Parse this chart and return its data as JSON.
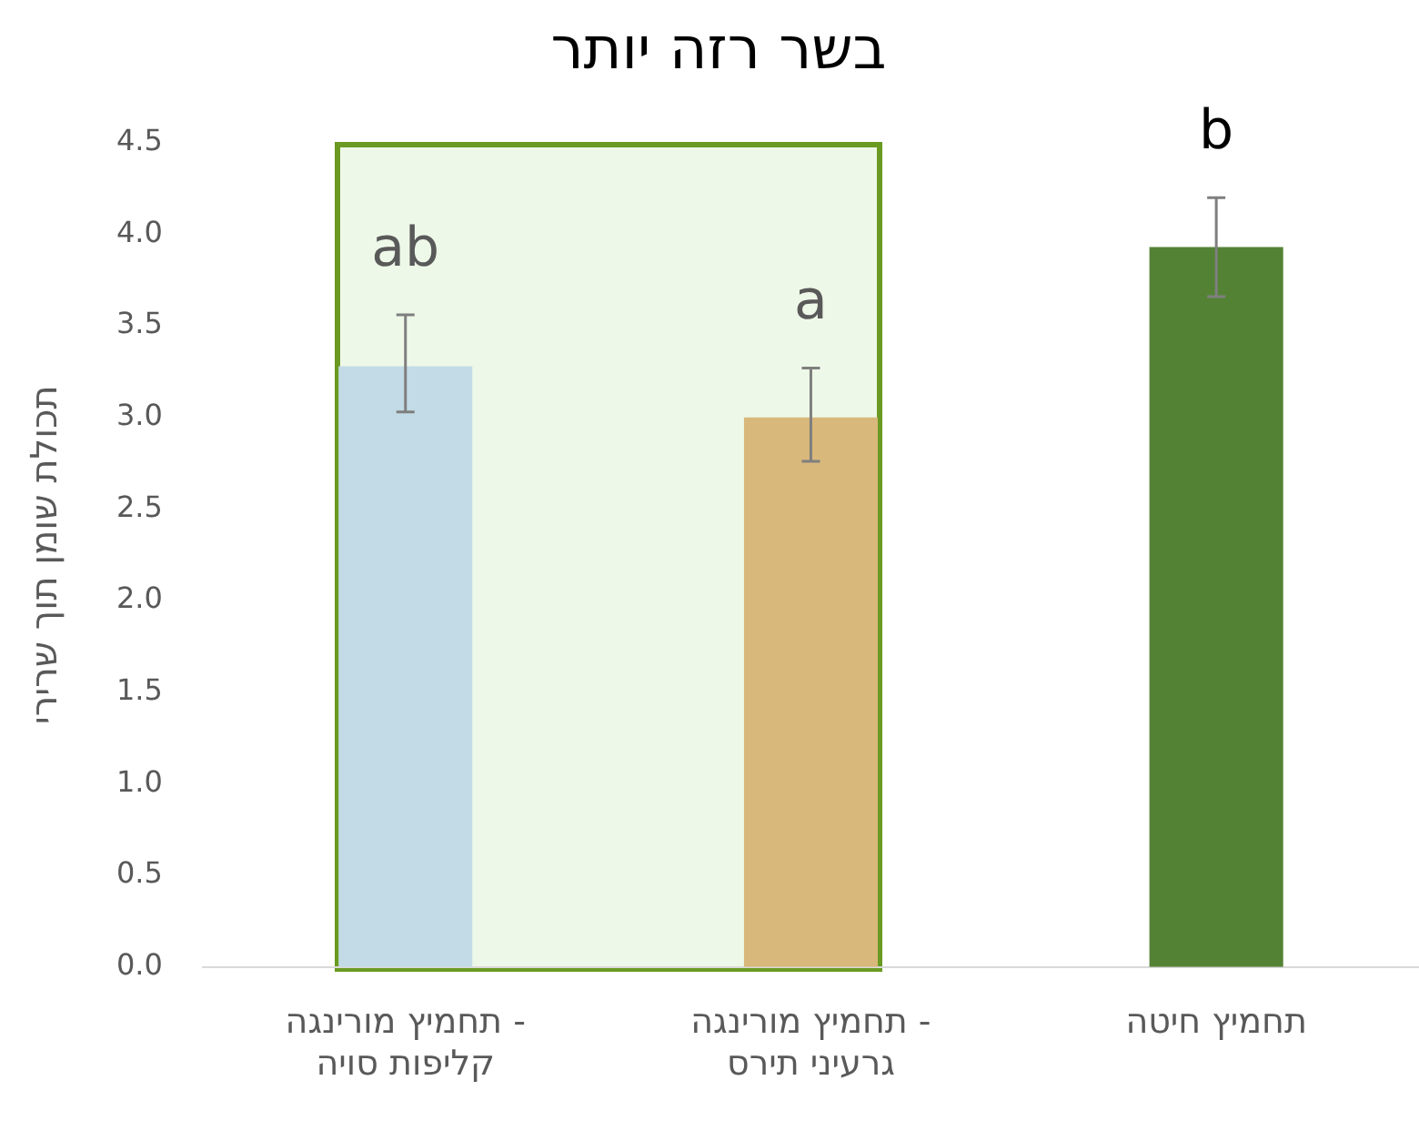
{
  "chart_data": {
    "type": "bar",
    "title": "בשר רזה יותר",
    "ylabel": "תכולת שומן תוך שרירי",
    "categories": [
      "תחמיץ מורינגה -\nקליפות סויה",
      "תחמיץ מורינגה -\nגרעיני תירס",
      "תחמיץ חיטה"
    ],
    "values": [
      3.28,
      3.0,
      3.93
    ],
    "colors": [
      "#c3dbe6",
      "#d9b87c",
      "#548235"
    ],
    "errors": [
      [
        3.03,
        3.56
      ],
      [
        2.76,
        3.27
      ],
      [
        3.66,
        4.2
      ]
    ],
    "ylim": [
      0,
      4.5
    ],
    "yticks": [
      {
        "value": 0,
        "label": "0.0"
      },
      {
        "value": 0.5,
        "label": "0.5"
      },
      {
        "value": 1,
        "label": "1.0"
      },
      {
        "value": 1.5,
        "label": "1.5"
      },
      {
        "value": 2,
        "label": "2.0"
      },
      {
        "value": 2.5,
        "label": "2.5"
      },
      {
        "value": 3,
        "label": "3.0"
      },
      {
        "value": 3.5,
        "label": "3.5"
      },
      {
        "value": 4,
        "label": "4.0"
      },
      {
        "value": 4.5,
        "label": "4.5"
      }
    ],
    "grid": false,
    "legend": false,
    "annotations": [
      "ab",
      "a",
      "b"
    ]
  }
}
